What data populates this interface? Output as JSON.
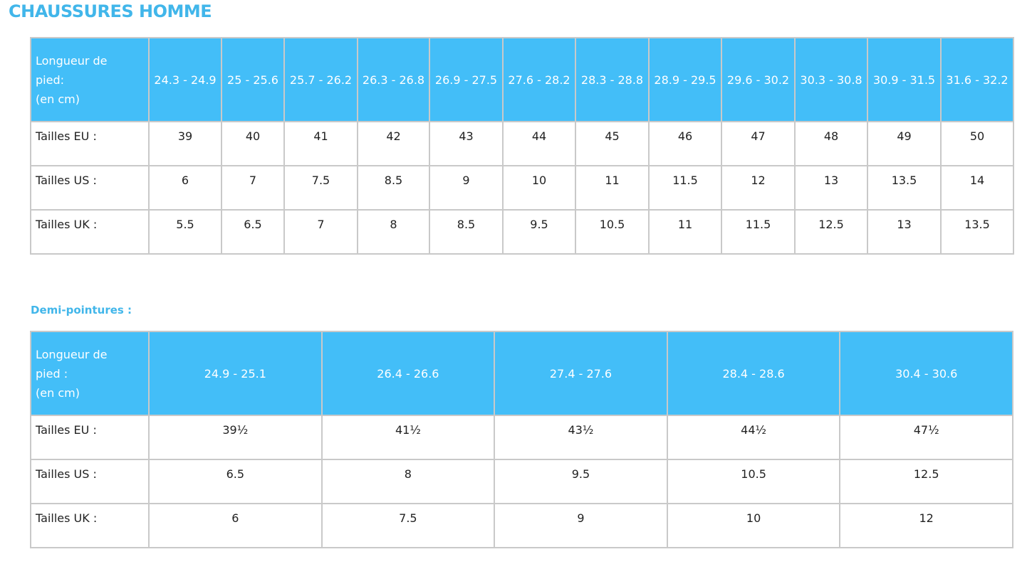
{
  "title": "CHAUSSURES HOMME",
  "half_sizes_title": "Demi-pointures :",
  "tables": [
    {
      "header": {
        "label": [
          "Longueur de",
          "pied:",
          "(en cm)"
        ],
        "columns": [
          "24.3 - 24.9",
          "25 - 25.6",
          "25.7 - 26.2",
          "26.3 - 26.8",
          "26.9 - 27.5",
          "27.6 - 28.2",
          "28.3 - 28.8",
          "28.9 - 29.5",
          "29.6 - 30.2",
          "30.3 - 30.8",
          "30.9 - 31.5",
          "31.6 - 32.2"
        ]
      },
      "rows": [
        {
          "label": "Tailles EU :",
          "values": [
            "39",
            "40",
            "41",
            "42",
            "43",
            "44",
            "45",
            "46",
            "47",
            "48",
            "49",
            "50"
          ]
        },
        {
          "label": "Tailles US :",
          "values": [
            "6",
            "7",
            "7.5",
            "8.5",
            "9",
            "10",
            "11",
            "11.5",
            "12",
            "13",
            "13.5",
            "14"
          ]
        },
        {
          "label": "Tailles UK :",
          "values": [
            "5.5",
            "6.5",
            "7",
            "8",
            "8.5",
            "9.5",
            "10.5",
            "11",
            "11.5",
            "12.5",
            "13",
            "13.5"
          ]
        }
      ]
    },
    {
      "header": {
        "label": [
          "Longueur de",
          "pied :",
          "(en cm)"
        ],
        "columns": [
          "24.9 - 25.1",
          "26.4 - 26.6",
          "27.4 - 27.6",
          "28.4 - 28.6",
          "30.4 - 30.6"
        ]
      },
      "rows": [
        {
          "label": "Tailles EU :",
          "values": [
            "39½",
            "41½",
            "43½",
            "44½",
            "47½"
          ]
        },
        {
          "label": "Tailles US :",
          "values": [
            "6.5",
            "8",
            "9.5",
            "10.5",
            "12.5"
          ]
        },
        {
          "label": "Tailles UK :",
          "values": [
            "6",
            "7.5",
            "9",
            "10",
            "12"
          ]
        }
      ]
    }
  ]
}
